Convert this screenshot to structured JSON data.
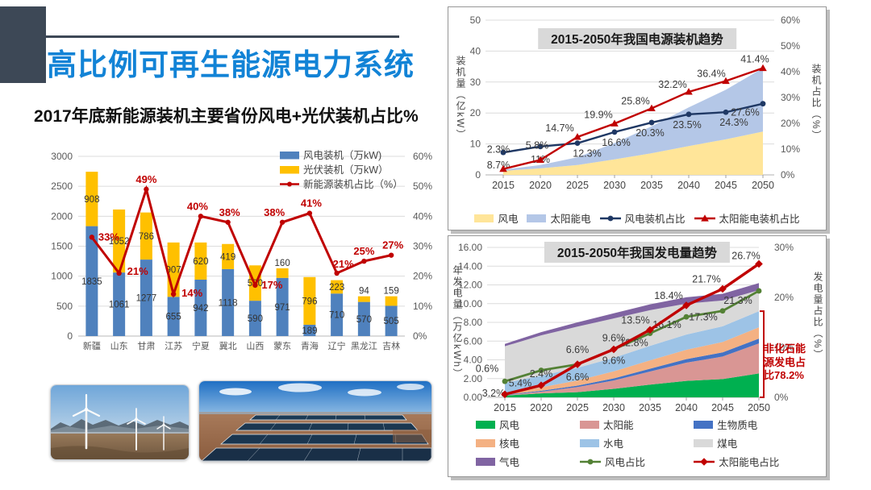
{
  "slide": {
    "title": "高比例可再生能源电力系统",
    "subtitle": "2017年底新能源装机主要省份风电+光伏装机占比%"
  },
  "colors": {
    "title_blue": "#1283D6",
    "accent_navy": "#3D4856",
    "bar_blue": "#4F81BD",
    "bar_yellow": "#FFC000",
    "line_red": "#C00000",
    "line_navy": "#1F3864",
    "line_green": "#538135",
    "area_wind_yellow": "#FFE599",
    "area_solar_blue": "#B4C7E7",
    "gen_wind_green": "#00B050",
    "gen_solar_rose": "#D99694",
    "gen_bio_blue": "#4472C4",
    "gen_nuclear_orange": "#F4B183",
    "gen_hydro_lightblue": "#9DC3E6",
    "gen_coal_gray": "#D9D9D9",
    "gen_gas_purple": "#8064A2",
    "grid_gray": "#DCDCDC",
    "tick_text": "#595959"
  },
  "chart_data": [
    {
      "id": "province-new-energy-2017",
      "type": "bar",
      "categories": [
        "新疆",
        "山东",
        "甘肃",
        "江苏",
        "宁夏",
        "冀北",
        "山西",
        "蒙东",
        "青海",
        "辽宁",
        "黑龙江",
        "吉林"
      ],
      "series": [
        {
          "name": "风电装机（万kW)",
          "type": "bar",
          "color": "#4F81BD",
          "values": [
            1835,
            1061,
            1277,
            655,
            942,
            1118,
            590,
            971,
            189,
            710,
            570,
            505
          ]
        },
        {
          "name": "光伏装机（万kW）",
          "type": "bar",
          "color": "#FFC000",
          "values": [
            908,
            1052,
            786,
            907,
            620,
            419,
            590,
            160,
            796,
            223,
            94,
            159
          ]
        },
        {
          "name": "新能源装机占比（%）",
          "type": "line",
          "color": "#C00000",
          "values": [
            33,
            21,
            49,
            14,
            40,
            38,
            17,
            38,
            41,
            21,
            25,
            27
          ]
        }
      ],
      "ylim_left": [
        0,
        3000
      ],
      "yticks_left": [
        0,
        500,
        1000,
        1500,
        2000,
        2500,
        3000
      ],
      "ylim_right": [
        0,
        60
      ],
      "yticks_right": [
        "0%",
        "10%",
        "20%",
        "30%",
        "40%",
        "50%",
        "60%"
      ]
    },
    {
      "id": "capacity-trend-2015-2050",
      "type": "area",
      "title": "2015-2050年我国电源装机趋势",
      "x": [
        2015,
        2020,
        2025,
        2030,
        2035,
        2040,
        2045,
        2050
      ],
      "area_series": [
        {
          "name": "风电",
          "color": "#FFE599",
          "values": [
            1.3,
            2.1,
            3.2,
            5.0,
            7.0,
            9.3,
            11.5,
            14.0
          ]
        },
        {
          "name": "太阳能电",
          "color": "#B4C7E7",
          "values": [
            0.4,
            1.1,
            2.5,
            5.3,
            8.7,
            12.5,
            16.0,
            20.5
          ]
        }
      ],
      "line_series": [
        {
          "name": "风电装机占比",
          "color": "#1F3864",
          "marker": "circle",
          "values": [
            8.7,
            11.0,
            12.3,
            16.6,
            20.3,
            23.5,
            24.3,
            27.6
          ]
        },
        {
          "name": "太阳能电装机占比",
          "color": "#C00000",
          "marker": "triangle",
          "values": [
            2.3,
            5.8,
            14.7,
            19.9,
            25.8,
            32.2,
            36.4,
            41.4
          ]
        }
      ],
      "ylabel_left": "装机量（亿kW）",
      "ylabel_right": "装机占比（%）",
      "ylim_left": [
        0,
        50
      ],
      "yticks_left": [
        0,
        10,
        20,
        30,
        40,
        50
      ],
      "ylim_right": [
        0,
        60
      ],
      "yticks_right": [
        "0%",
        "10%",
        "20%",
        "30%",
        "40%",
        "50%",
        "60%"
      ]
    },
    {
      "id": "generation-trend-2015-2050",
      "type": "area",
      "title": "2015-2050年我国发电量趋势",
      "x": [
        2015,
        2020,
        2025,
        2030,
        2035,
        2040,
        2045,
        2050
      ],
      "area_series": [
        {
          "name": "风电",
          "color": "#00B050",
          "values": [
            0.19,
            0.42,
            0.55,
            0.9,
            1.35,
            1.75,
            1.95,
            2.55
          ]
        },
        {
          "name": "太阳能",
          "color": "#D99694",
          "values": [
            0.04,
            0.18,
            0.55,
            0.9,
            1.4,
            1.95,
            2.4,
            3.2
          ]
        },
        {
          "name": "生物质电",
          "color": "#4472C4",
          "values": [
            0.05,
            0.1,
            0.15,
            0.22,
            0.3,
            0.38,
            0.45,
            0.52
          ]
        },
        {
          "name": "核电",
          "color": "#F4B183",
          "values": [
            0.17,
            0.36,
            0.55,
            0.75,
            0.9,
            1.0,
            1.1,
            1.2
          ]
        },
        {
          "name": "水电",
          "color": "#9DC3E6",
          "values": [
            1.1,
            1.25,
            1.35,
            1.45,
            1.55,
            1.62,
            1.68,
            1.72
          ]
        },
        {
          "name": "煤电",
          "color": "#D9D9D9",
          "values": [
            3.9,
            4.3,
            4.4,
            4.2,
            3.8,
            3.3,
            2.75,
            2.25
          ]
        },
        {
          "name": "气电",
          "color": "#8064A2",
          "values": [
            0.25,
            0.35,
            0.45,
            0.55,
            0.62,
            0.68,
            0.72,
            0.75
          ]
        }
      ],
      "line_series": [
        {
          "name": "风电占比",
          "color": "#538135",
          "marker": "circle",
          "values": [
            3.2,
            5.4,
            6.6,
            9.6,
            12.8,
            16.1,
            17.3,
            21.3
          ]
        },
        {
          "name": "太阳能电占比",
          "color": "#C00000",
          "marker": "diamond",
          "values": [
            0.6,
            2.4,
            6.6,
            9.6,
            13.5,
            18.4,
            21.7,
            26.7
          ]
        }
      ],
      "annotation": {
        "text": "非化石能源发电占比",
        "value": "78.2%"
      },
      "ylabel_left": "年发电量（万亿kWh）",
      "ylabel_right": "发电量占比（%）",
      "ylim_left": [
        0,
        16
      ],
      "yticks_left": [
        "0.00",
        "2.00",
        "4.00",
        "6.00",
        "8.00",
        "10.00",
        "12.00",
        "14.00",
        "16.00"
      ],
      "ylim_right": [
        0,
        30
      ],
      "yticks_right": [
        "0%",
        "10%",
        "20%",
        "30%"
      ]
    }
  ]
}
